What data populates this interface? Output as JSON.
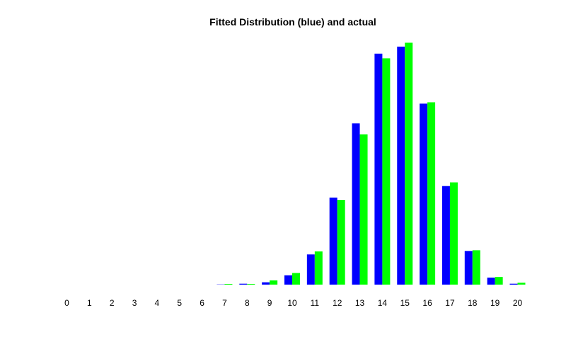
{
  "chart_data": {
    "type": "bar",
    "title": "Fitted Distribution (blue) and actual",
    "xlabel": "",
    "ylabel": "",
    "categories": [
      "0",
      "1",
      "2",
      "3",
      "4",
      "5",
      "6",
      "7",
      "8",
      "9",
      "10",
      "11",
      "12",
      "13",
      "14",
      "15",
      "16",
      "17",
      "18",
      "19",
      "20"
    ],
    "series": [
      {
        "color": "#0000ff",
        "values": [
          0,
          0,
          0,
          0,
          0,
          0,
          0,
          0.1,
          0.4,
          1.0,
          4.0,
          13.0,
          37.5,
          69.5,
          99.5,
          102.5,
          78.0,
          42.5,
          14.5,
          3.0,
          0.4
        ]
      },
      {
        "color": "#00ff00",
        "values": [
          0,
          0,
          0,
          0,
          0,
          0,
          0,
          0.3,
          0.3,
          1.8,
          5.0,
          14.3,
          36.5,
          64.7,
          97.5,
          104.2,
          78.5,
          44.0,
          14.8,
          3.3,
          0.8
        ]
      }
    ],
    "ylim": [
      0,
      108
    ],
    "grid": false,
    "legend": "none",
    "axes_visible": false
  }
}
